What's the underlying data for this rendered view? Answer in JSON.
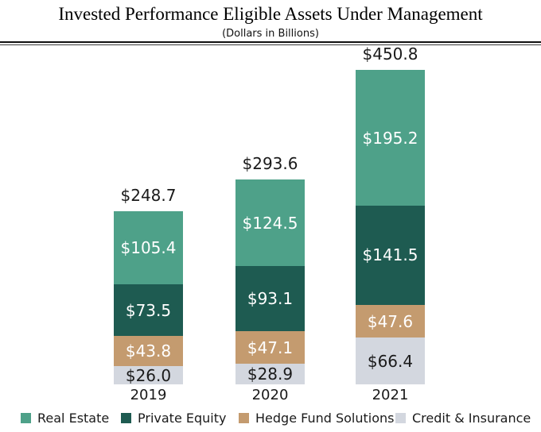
{
  "header": {
    "title": "Invested Performance Eligible Assets Under Management",
    "subtitle": "(Dollars in Billions)"
  },
  "chart_data": {
    "type": "bar",
    "stacked": true,
    "title": "Invested Performance Eligible Assets Under Management",
    "subtitle": "(Dollars in Billions)",
    "value_prefix": "$",
    "categories": [
      "2019",
      "2020",
      "2021"
    ],
    "totals": [
      248.7,
      293.6,
      450.8
    ],
    "total_labels": [
      "$248.7",
      "$293.6",
      "$450.8"
    ],
    "series": [
      {
        "name": "Real Estate",
        "color": "#4EA189",
        "label_color": "#ffffff",
        "values": [
          105.4,
          124.5,
          195.2
        ]
      },
      {
        "name": "Private Equity",
        "color": "#1E5B51",
        "label_color": "#ffffff",
        "values": [
          73.5,
          93.1,
          141.5
        ]
      },
      {
        "name": "Hedge Fund Solutions",
        "color": "#C49B6F",
        "label_color": "#ffffff",
        "values": [
          43.8,
          47.1,
          47.6
        ]
      },
      {
        "name": "Credit & Insurance",
        "color": "#D3D7DF",
        "label_color": "#1a1a1a",
        "values": [
          26.0,
          28.9,
          66.4
        ]
      }
    ],
    "legend_position": "bottom",
    "grid": false,
    "ylim": [
      0,
      460
    ],
    "axes_visible": false
  },
  "legend": {
    "items": [
      "Real Estate",
      "Private Equity",
      "Hedge Fund Solutions",
      "Credit & Insurance"
    ]
  }
}
